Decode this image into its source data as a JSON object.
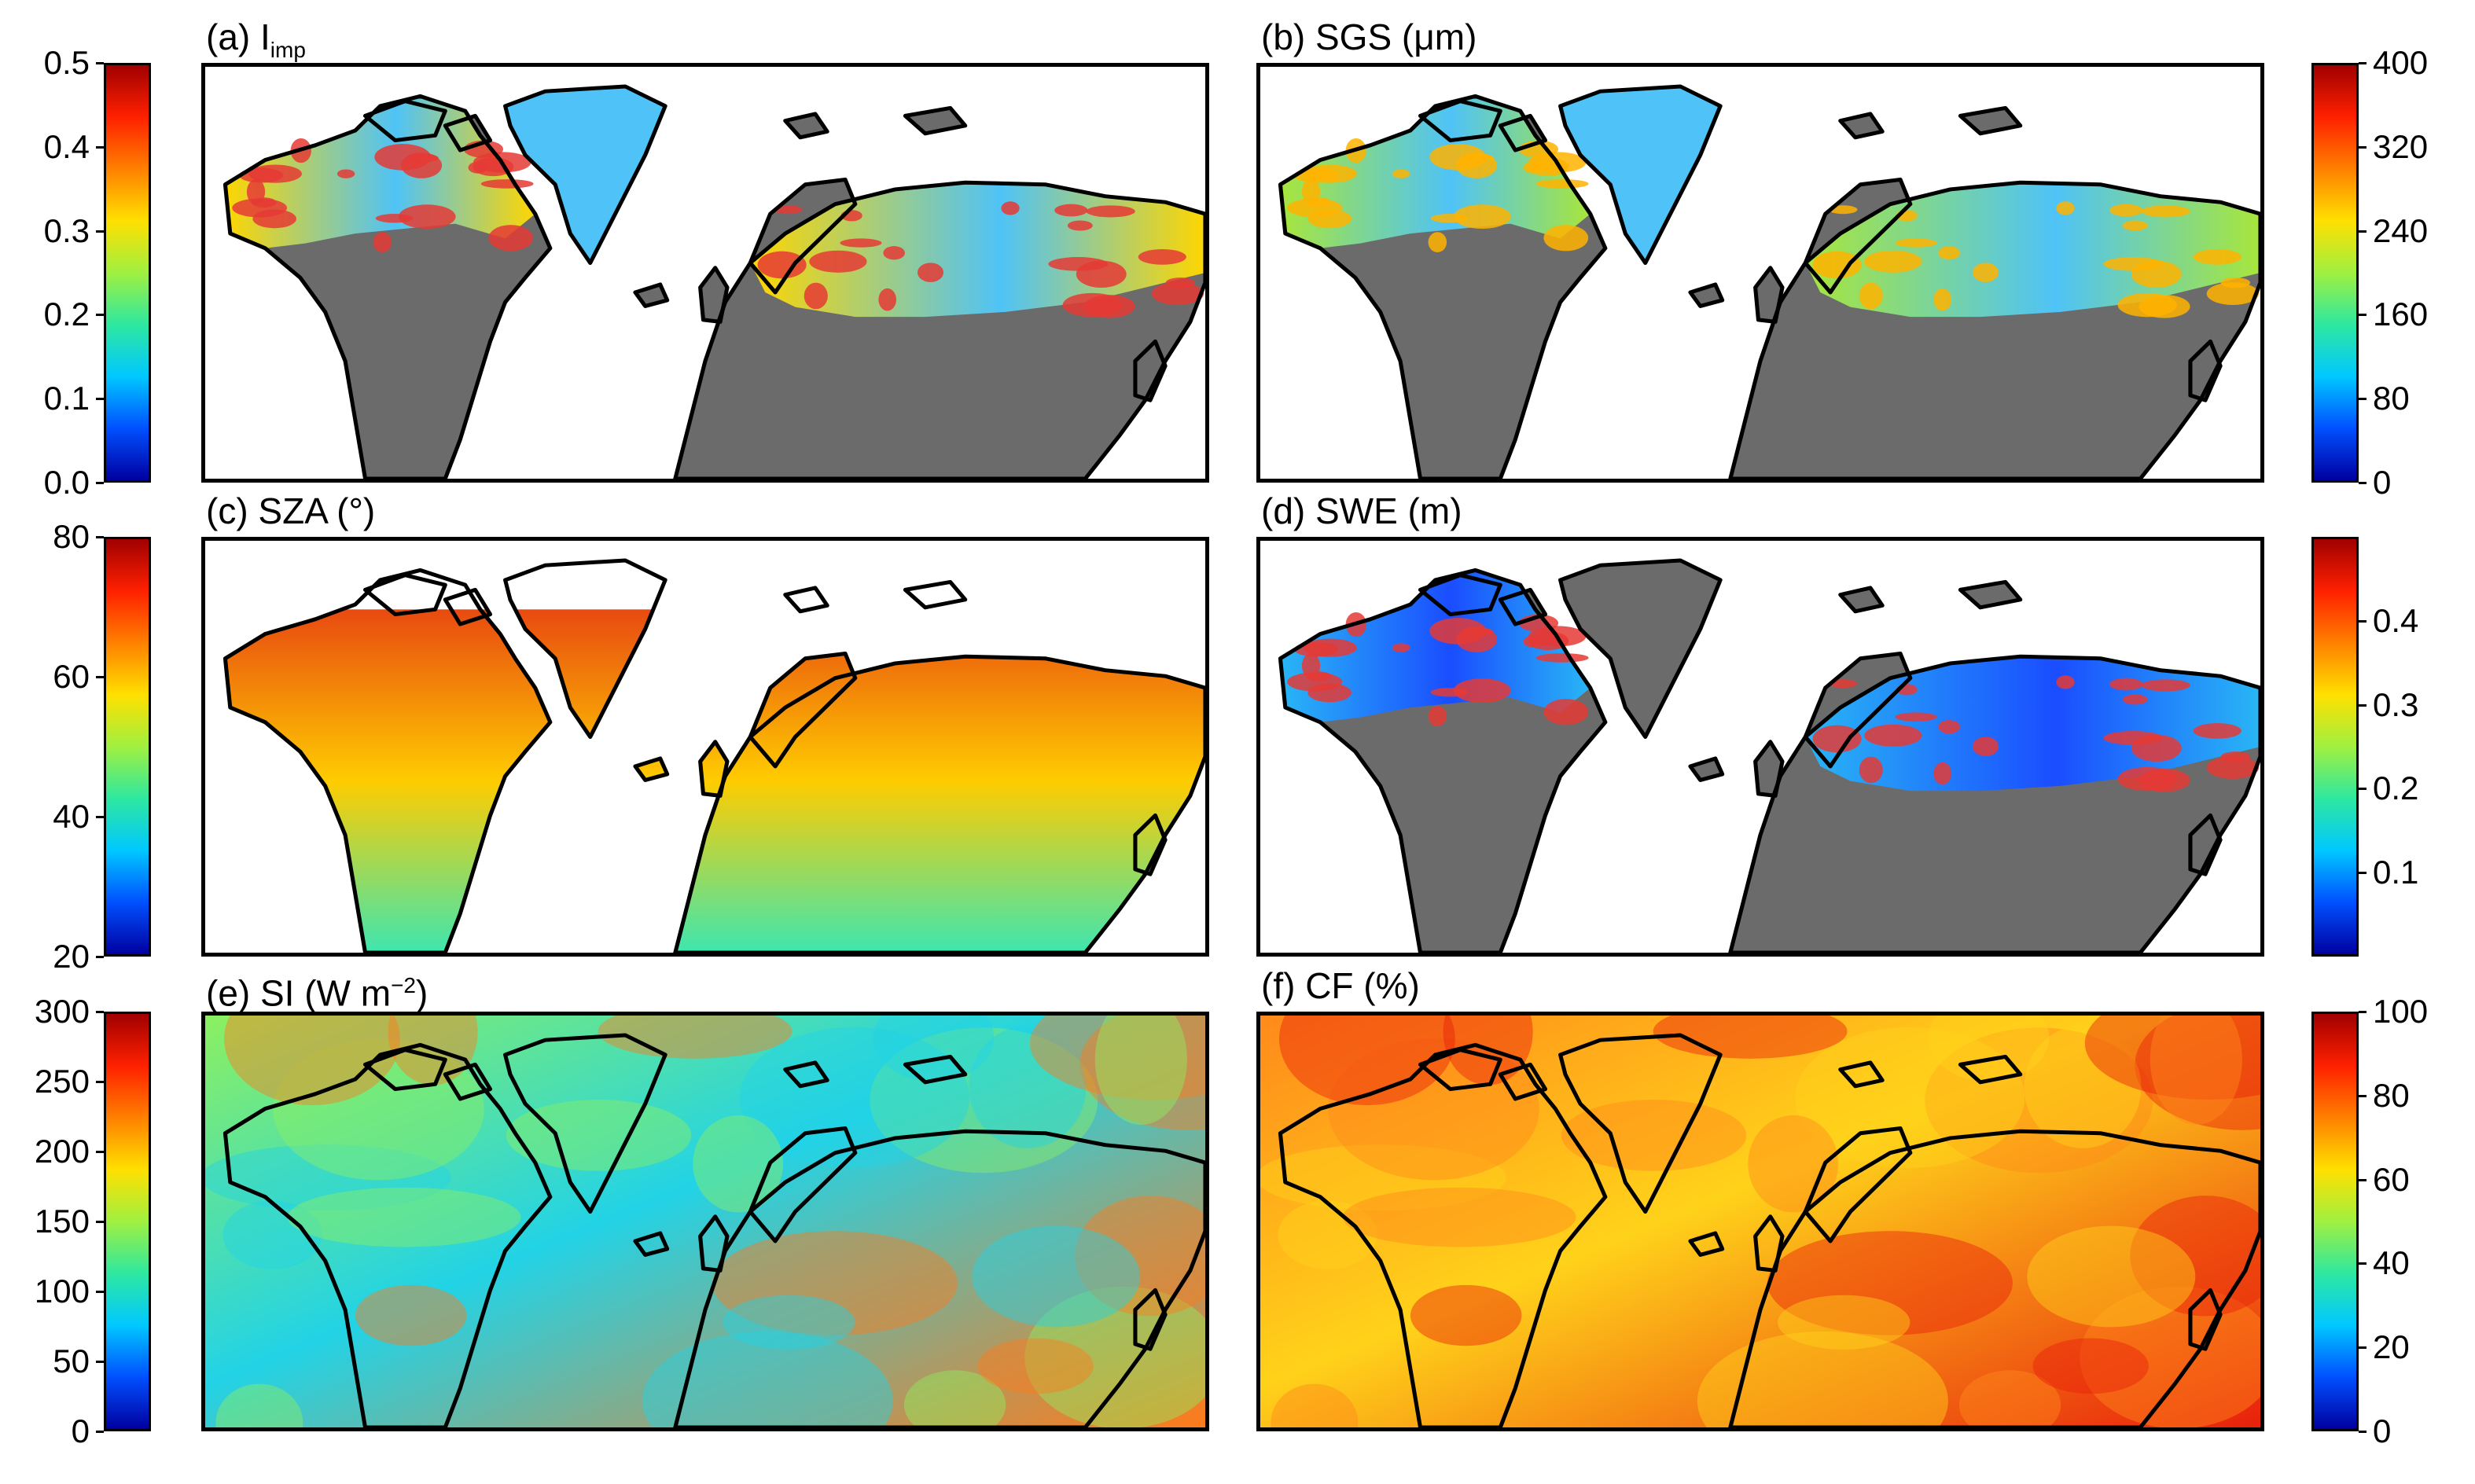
{
  "colors": {
    "jet": [
      "#0000a0",
      "#0050ff",
      "#00c8ff",
      "#2ee8a0",
      "#a0f040",
      "#ffe000",
      "#ff8000",
      "#ff2000",
      "#a00000"
    ],
    "land_no_data": "#6b6b6b",
    "coast": "#000000"
  },
  "chart_data": [
    {
      "id": "a",
      "type": "heatmap",
      "title_main": "(a) I",
      "title_sub": "imp",
      "title_sup": "",
      "title_tail": "",
      "colorbar": {
        "side": "left",
        "ticks": [
          "0.5",
          "0.4",
          "0.3",
          "0.2",
          "0.1",
          "0.0"
        ],
        "range": [
          0.0,
          0.5
        ],
        "palette": "jet"
      },
      "map_style": "snow-masked",
      "field": {
        "low_color": "#4fc3f7",
        "mid_color": "#ffd600",
        "high_color": "#e53935"
      }
    },
    {
      "id": "b",
      "type": "heatmap",
      "title_main": "(b) SGS (μm)",
      "title_sub": "",
      "title_sup": "",
      "title_tail": "",
      "colorbar": {
        "side": "right",
        "ticks": [
          "400",
          "320",
          "240",
          "160",
          "80",
          "0"
        ],
        "range": [
          0,
          400
        ],
        "palette": "jet"
      },
      "map_style": "snow-masked",
      "field": {
        "low_color": "#4fc3f7",
        "mid_color": "#a8e63a",
        "high_color": "#ffb300"
      }
    },
    {
      "id": "c",
      "type": "heatmap",
      "title_main": "(c) SZA (°)",
      "title_sub": "",
      "title_sup": "",
      "title_tail": "",
      "colorbar": {
        "side": "left",
        "ticks": [
          "80",
          "60",
          "40",
          "20"
        ],
        "range": [
          20,
          80
        ],
        "palette": "jet"
      },
      "map_style": "latitude-gradient",
      "field": {
        "low_color": "#3ee6b0",
        "mid_color": "#ffcc00",
        "high_color": "#e84a10"
      }
    },
    {
      "id": "d",
      "type": "heatmap",
      "title_main": "(d) SWE (m)",
      "title_sub": "",
      "title_sup": "",
      "title_tail": "",
      "colorbar": {
        "side": "right",
        "ticks": [
          "0.4",
          "0.3",
          "0.2",
          "0.1"
        ],
        "range": [
          0.0,
          0.5
        ],
        "palette": "jet"
      },
      "map_style": "snow-masked",
      "field": {
        "low_color": "#1a4dff",
        "mid_color": "#29b6f6",
        "high_color": "#e53935"
      }
    },
    {
      "id": "e",
      "type": "heatmap",
      "title_main": "(e) SI (W m",
      "title_sub": "",
      "title_sup": "−2",
      "title_tail": ")",
      "colorbar": {
        "side": "left",
        "ticks": [
          "300",
          "250",
          "200",
          "150",
          "100",
          "50",
          "0"
        ],
        "range": [
          0,
          300
        ],
        "palette": "jet"
      },
      "map_style": "full-field",
      "field": {
        "low_color": "#22d3e6",
        "mid_color": "#8cf060",
        "high_color": "#ff7a1a"
      }
    },
    {
      "id": "f",
      "type": "heatmap",
      "title_main": "(f) CF (%)",
      "title_sub": "",
      "title_sup": "",
      "title_tail": "",
      "colorbar": {
        "side": "right",
        "ticks": [
          "100",
          "80",
          "60",
          "40",
          "20",
          "0"
        ],
        "range": [
          0,
          100
        ],
        "palette": "jet"
      },
      "map_style": "full-field",
      "field": {
        "low_color": "#ffd21a",
        "mid_color": "#ff8a1a",
        "high_color": "#e8200c"
      }
    }
  ]
}
